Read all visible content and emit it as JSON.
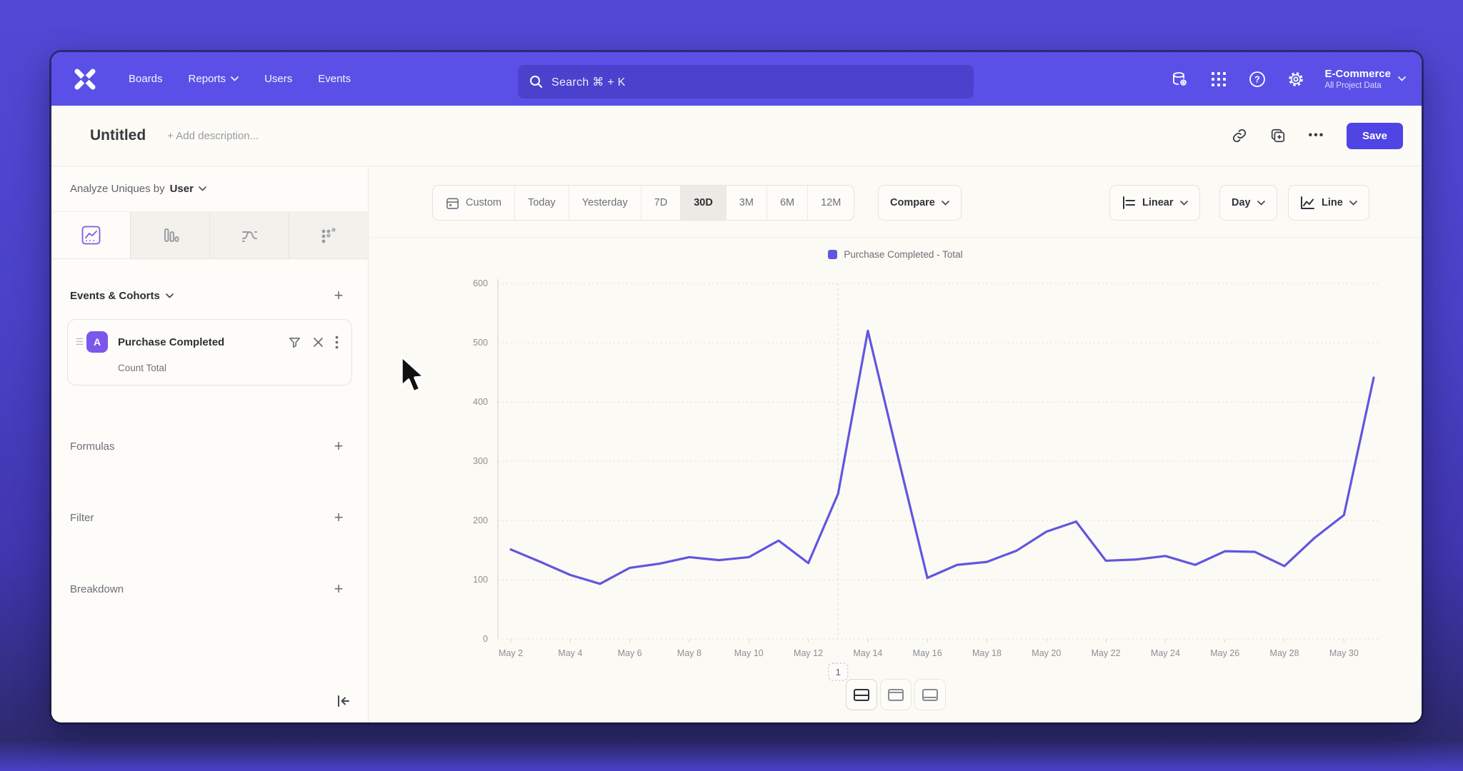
{
  "nav": {
    "items": [
      {
        "label": "Boards"
      },
      {
        "label": "Reports"
      },
      {
        "label": "Users"
      },
      {
        "label": "Events"
      }
    ],
    "search": {
      "placeholder": "Search  ⌘ + K"
    },
    "project": {
      "name": "E-Commerce",
      "scope": "All Project Data"
    }
  },
  "report_header": {
    "title": "Untitled",
    "description_placeholder": "+ Add description...",
    "more_label": "•••",
    "save_label": "Save"
  },
  "sidebar": {
    "analyze_prefix": "Analyze Uniques by",
    "analyze_value": "User",
    "events_title": "Events & Cohorts",
    "event_card": {
      "badge": "A",
      "name": "Purchase Completed",
      "metric": "Count Total",
      "drag": "☰"
    },
    "sections": [
      {
        "label": "Formulas"
      },
      {
        "label": "Filter"
      },
      {
        "label": "Breakdown"
      }
    ]
  },
  "toolbar": {
    "date_ranges": [
      "Custom",
      "Today",
      "Yesterday",
      "7D",
      "30D",
      "3M",
      "6M",
      "12M"
    ],
    "active_range": "30D",
    "compare_label": "Compare",
    "scale_label": "Linear",
    "interval_label": "Day",
    "chart_type_label": "Line"
  },
  "chart_data": {
    "type": "line",
    "title": "",
    "legend": "Purchase Completed - Total",
    "legend_position": "top-center",
    "x": [
      "May 2",
      "May 3",
      "May 4",
      "May 5",
      "May 6",
      "May 7",
      "May 8",
      "May 9",
      "May 10",
      "May 11",
      "May 12",
      "May 13",
      "May 14",
      "May 15",
      "May 16",
      "May 17",
      "May 18",
      "May 19",
      "May 20",
      "May 21",
      "May 22",
      "May 23",
      "May 24",
      "May 25",
      "May 26",
      "May 27",
      "May 28",
      "May 29",
      "May 30",
      "May 31"
    ],
    "tick_every": 2,
    "series": [
      {
        "name": "Purchase Completed - Total",
        "color": "#6156df",
        "values": [
          151,
          130,
          108,
          93,
          120,
          127,
          138,
          133,
          138,
          166,
          128,
          245,
          520,
          310,
          103,
          125,
          130,
          149,
          181,
          198,
          132,
          134,
          140,
          125,
          148,
          147,
          123,
          170,
          209,
          441
        ]
      }
    ],
    "ylim": [
      0,
      600
    ],
    "yticks": [
      0,
      100,
      200,
      300,
      400,
      500,
      600
    ],
    "grid": "dotted-horizontal",
    "annotation": {
      "label": "1",
      "x_index": 11
    }
  },
  "colors": {
    "nav_purple": "#5a50e8",
    "search_purple": "#4b41cd",
    "save_purple": "#4f44e4",
    "accent_purple": "#6156df",
    "badge_purple": "#7b57ea",
    "bg_warm_white": "#fbfaf5",
    "text_dark": "#2f2f35",
    "text_gray": "#70707a"
  }
}
